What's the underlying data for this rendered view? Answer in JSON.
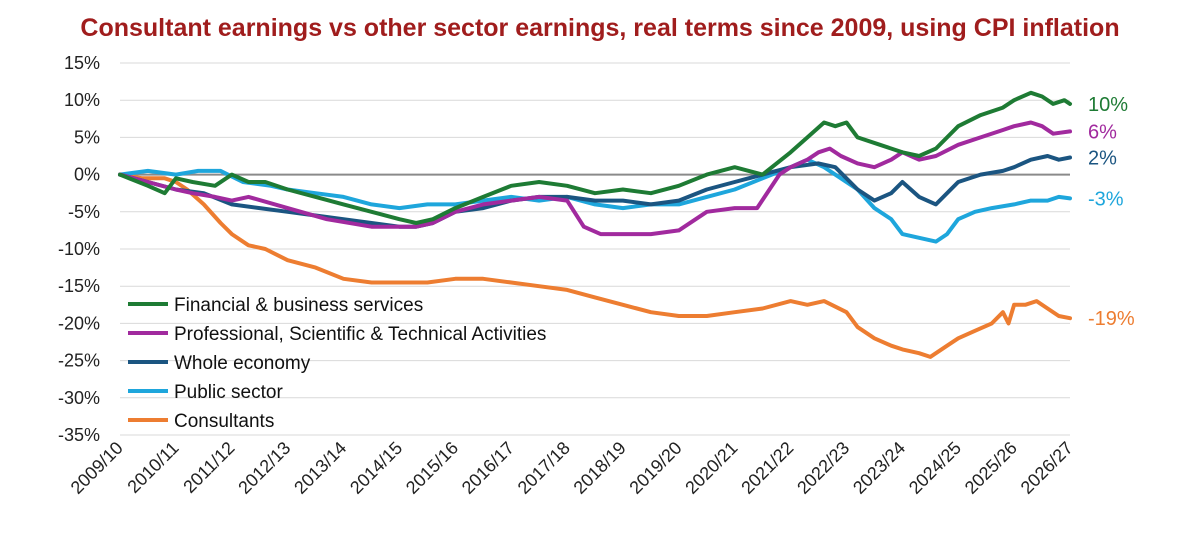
{
  "chart_data": {
    "type": "line",
    "title": "Consultant earnings vs other sector earnings, real terms since 2009, using CPI inflation",
    "xlabel": "",
    "ylabel": "",
    "ylim": [
      -35,
      15
    ],
    "yticks": [
      15,
      10,
      5,
      0,
      -5,
      -10,
      -15,
      -20,
      -25,
      -30,
      -35
    ],
    "ytick_labels": [
      "15%",
      "10%",
      "5%",
      "0%",
      "-5%",
      "-10%",
      "-15%",
      "-20%",
      "-25%",
      "-30%",
      "-35%"
    ],
    "categories": [
      "2009/10",
      "2010/11",
      "2011/12",
      "2012/13",
      "2013/14",
      "2014/15",
      "2015/16",
      "2016/17",
      "2017/18",
      "2018/19",
      "2019/20",
      "2020/21",
      "2021/22",
      "2022/23",
      "2023/24",
      "2024/25",
      "2025/26",
      "2026/27"
    ],
    "x_range": [
      0,
      17
    ],
    "grid": "horizontal",
    "legend": "lower-left",
    "series": [
      {
        "name": "Financial & business services",
        "color": "#1e7b34",
        "end_label": "10%",
        "points": [
          [
            0,
            0
          ],
          [
            0.5,
            -1.5
          ],
          [
            0.8,
            -2.5
          ],
          [
            1.0,
            -0.5
          ],
          [
            1.3,
            -1
          ],
          [
            1.7,
            -1.5
          ],
          [
            2.0,
            0
          ],
          [
            2.3,
            -1
          ],
          [
            2.6,
            -1
          ],
          [
            3.0,
            -2
          ],
          [
            3.5,
            -3
          ],
          [
            4.0,
            -4
          ],
          [
            4.5,
            -5
          ],
          [
            5.0,
            -6
          ],
          [
            5.3,
            -6.5
          ],
          [
            5.6,
            -6
          ],
          [
            6.0,
            -4.5
          ],
          [
            6.5,
            -3
          ],
          [
            7.0,
            -1.5
          ],
          [
            7.5,
            -1
          ],
          [
            8.0,
            -1.5
          ],
          [
            8.5,
            -2.5
          ],
          [
            9.0,
            -2
          ],
          [
            9.5,
            -2.5
          ],
          [
            10.0,
            -1.5
          ],
          [
            10.5,
            0
          ],
          [
            11.0,
            1
          ],
          [
            11.5,
            0
          ],
          [
            12.0,
            3
          ],
          [
            12.3,
            5
          ],
          [
            12.6,
            7
          ],
          [
            12.8,
            6.5
          ],
          [
            13.0,
            7
          ],
          [
            13.2,
            5
          ],
          [
            13.6,
            4
          ],
          [
            14.0,
            3
          ],
          [
            14.3,
            2.5
          ],
          [
            14.6,
            3.5
          ],
          [
            15.0,
            6.5
          ],
          [
            15.4,
            8
          ],
          [
            15.8,
            9
          ],
          [
            16.0,
            10
          ],
          [
            16.3,
            11
          ],
          [
            16.5,
            10.5
          ],
          [
            16.7,
            9.5
          ],
          [
            16.9,
            10
          ],
          [
            17.0,
            9.5
          ]
        ]
      },
      {
        "name": "Professional, Scientific & Technical Activities",
        "color": "#a12a9e",
        "end_label": "6%",
        "points": [
          [
            0,
            0
          ],
          [
            0.5,
            -1
          ],
          [
            1.0,
            -2
          ],
          [
            1.3,
            -2.5
          ],
          [
            1.7,
            -3
          ],
          [
            2.0,
            -3.5
          ],
          [
            2.3,
            -3
          ],
          [
            3.0,
            -4.5
          ],
          [
            3.7,
            -6
          ],
          [
            4.5,
            -7
          ],
          [
            5.0,
            -7
          ],
          [
            5.3,
            -7
          ],
          [
            5.6,
            -6.5
          ],
          [
            6.0,
            -5
          ],
          [
            6.5,
            -4
          ],
          [
            7.0,
            -3.5
          ],
          [
            7.5,
            -3
          ],
          [
            8.0,
            -3.5
          ],
          [
            8.3,
            -7
          ],
          [
            8.6,
            -8
          ],
          [
            9.0,
            -8
          ],
          [
            9.5,
            -8
          ],
          [
            10.0,
            -7.5
          ],
          [
            10.5,
            -5
          ],
          [
            11.0,
            -4.5
          ],
          [
            11.4,
            -4.5
          ],
          [
            11.8,
            0
          ],
          [
            12.0,
            1
          ],
          [
            12.3,
            2
          ],
          [
            12.5,
            3
          ],
          [
            12.7,
            3.5
          ],
          [
            12.9,
            2.5
          ],
          [
            13.2,
            1.5
          ],
          [
            13.5,
            1
          ],
          [
            13.8,
            2
          ],
          [
            14.0,
            3
          ],
          [
            14.3,
            2
          ],
          [
            14.6,
            2.5
          ],
          [
            15.0,
            4
          ],
          [
            15.4,
            5
          ],
          [
            15.8,
            6
          ],
          [
            16.0,
            6.5
          ],
          [
            16.3,
            7
          ],
          [
            16.5,
            6.5
          ],
          [
            16.7,
            5.5
          ],
          [
            17.0,
            5.8
          ]
        ]
      },
      {
        "name": "Whole economy",
        "color": "#1b5581",
        "end_label": "2%",
        "points": [
          [
            0,
            0
          ],
          [
            0.5,
            -1
          ],
          [
            1.0,
            -2
          ],
          [
            1.5,
            -2.5
          ],
          [
            2.0,
            -4
          ],
          [
            2.5,
            -4.5
          ],
          [
            3.0,
            -5
          ],
          [
            3.5,
            -5.5
          ],
          [
            4.0,
            -6
          ],
          [
            4.5,
            -6.5
          ],
          [
            5.0,
            -7
          ],
          [
            5.3,
            -7
          ],
          [
            5.6,
            -6.5
          ],
          [
            6.0,
            -5
          ],
          [
            6.5,
            -4.5
          ],
          [
            7.0,
            -3.5
          ],
          [
            7.5,
            -3
          ],
          [
            8.0,
            -3
          ],
          [
            8.5,
            -3.5
          ],
          [
            9.0,
            -3.5
          ],
          [
            9.5,
            -4
          ],
          [
            10.0,
            -3.5
          ],
          [
            10.5,
            -2
          ],
          [
            11.0,
            -1
          ],
          [
            11.5,
            0
          ],
          [
            12.0,
            1
          ],
          [
            12.5,
            1.5
          ],
          [
            12.8,
            1
          ],
          [
            13.2,
            -2
          ],
          [
            13.5,
            -3.5
          ],
          [
            13.8,
            -2.5
          ],
          [
            14.0,
            -1
          ],
          [
            14.3,
            -3
          ],
          [
            14.6,
            -4
          ],
          [
            15.0,
            -1
          ],
          [
            15.4,
            0
          ],
          [
            15.8,
            0.5
          ],
          [
            16.0,
            1
          ],
          [
            16.3,
            2
          ],
          [
            16.6,
            2.5
          ],
          [
            16.8,
            2
          ],
          [
            17.0,
            2.3
          ]
        ]
      },
      {
        "name": "Public sector",
        "color": "#1ea6dc",
        "end_label": "-3%",
        "points": [
          [
            0,
            0
          ],
          [
            0.5,
            0.5
          ],
          [
            1.0,
            0
          ],
          [
            1.4,
            0.5
          ],
          [
            1.8,
            0.5
          ],
          [
            2.2,
            -1
          ],
          [
            2.7,
            -1.5
          ],
          [
            3.0,
            -2
          ],
          [
            3.5,
            -2.5
          ],
          [
            4.0,
            -3
          ],
          [
            4.5,
            -4
          ],
          [
            5.0,
            -4.5
          ],
          [
            5.5,
            -4
          ],
          [
            6.0,
            -4
          ],
          [
            6.5,
            -3.5
          ],
          [
            7.0,
            -3
          ],
          [
            7.5,
            -3.5
          ],
          [
            8.0,
            -3
          ],
          [
            8.5,
            -4
          ],
          [
            9.0,
            -4.5
          ],
          [
            9.5,
            -4
          ],
          [
            10.0,
            -4
          ],
          [
            10.5,
            -3
          ],
          [
            11.0,
            -2
          ],
          [
            11.5,
            -0.5
          ],
          [
            12.0,
            1
          ],
          [
            12.3,
            2
          ],
          [
            12.6,
            1
          ],
          [
            12.9,
            -0.5
          ],
          [
            13.2,
            -2
          ],
          [
            13.5,
            -4.5
          ],
          [
            13.8,
            -6
          ],
          [
            14.0,
            -8
          ],
          [
            14.3,
            -8.5
          ],
          [
            14.6,
            -9
          ],
          [
            14.8,
            -8
          ],
          [
            15.0,
            -6
          ],
          [
            15.3,
            -5
          ],
          [
            15.6,
            -4.5
          ],
          [
            16.0,
            -4
          ],
          [
            16.3,
            -3.5
          ],
          [
            16.6,
            -3.5
          ],
          [
            16.8,
            -3
          ],
          [
            17.0,
            -3.2
          ]
        ]
      },
      {
        "name": "Consultants",
        "color": "#ed7d31",
        "end_label": "-19%",
        "points": [
          [
            0,
            0
          ],
          [
            0.4,
            -0.5
          ],
          [
            0.8,
            -0.5
          ],
          [
            1.0,
            -1
          ],
          [
            1.2,
            -2
          ],
          [
            1.5,
            -4
          ],
          [
            1.8,
            -6.5
          ],
          [
            2.0,
            -8
          ],
          [
            2.3,
            -9.5
          ],
          [
            2.6,
            -10
          ],
          [
            3.0,
            -11.5
          ],
          [
            3.5,
            -12.5
          ],
          [
            4.0,
            -14
          ],
          [
            4.5,
            -14.5
          ],
          [
            5.0,
            -14.5
          ],
          [
            5.5,
            -14.5
          ],
          [
            6.0,
            -14
          ],
          [
            6.5,
            -14
          ],
          [
            7.0,
            -14.5
          ],
          [
            7.5,
            -15
          ],
          [
            8.0,
            -15.5
          ],
          [
            8.5,
            -16.5
          ],
          [
            9.0,
            -17.5
          ],
          [
            9.5,
            -18.5
          ],
          [
            10.0,
            -19
          ],
          [
            10.5,
            -19
          ],
          [
            11.0,
            -18.5
          ],
          [
            11.5,
            -18
          ],
          [
            12.0,
            -17
          ],
          [
            12.3,
            -17.5
          ],
          [
            12.6,
            -17
          ],
          [
            13.0,
            -18.5
          ],
          [
            13.2,
            -20.5
          ],
          [
            13.5,
            -22
          ],
          [
            13.8,
            -23
          ],
          [
            14.0,
            -23.5
          ],
          [
            14.3,
            -24
          ],
          [
            14.5,
            -24.5
          ],
          [
            14.8,
            -23
          ],
          [
            15.0,
            -22
          ],
          [
            15.3,
            -21
          ],
          [
            15.6,
            -20
          ],
          [
            15.8,
            -18.5
          ],
          [
            15.9,
            -20
          ],
          [
            16.0,
            -17.5
          ],
          [
            16.2,
            -17.5
          ],
          [
            16.4,
            -17
          ],
          [
            16.6,
            -18
          ],
          [
            16.8,
            -19
          ],
          [
            17.0,
            -19.3
          ]
        ]
      }
    ]
  }
}
